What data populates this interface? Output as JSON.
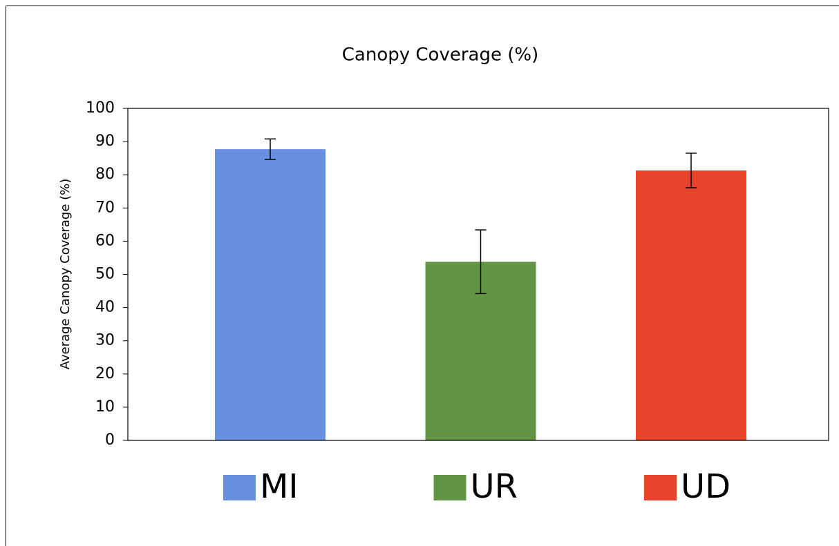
{
  "chart_data": {
    "type": "bar",
    "title": "Canopy Coverage (%)",
    "y_label": "Average Canopy Coverage (%)",
    "series": [
      {
        "name": "MI",
        "color": "#6790e0",
        "values": [
          87.7
        ],
        "errors": [
          3.1
        ]
      },
      {
        "name": "UR",
        "color": "#629446",
        "values": [
          53.8
        ],
        "errors": [
          9.6
        ]
      },
      {
        "name": "UD",
        "color": "#e8432b",
        "values": [
          81.3
        ],
        "errors": [
          5.2
        ]
      }
    ],
    "ylim": [
      0,
      100
    ],
    "yticks": [
      0,
      10,
      20,
      30,
      40,
      50,
      60,
      70,
      80,
      90,
      100
    ],
    "grid": false,
    "legend": "bottom"
  }
}
